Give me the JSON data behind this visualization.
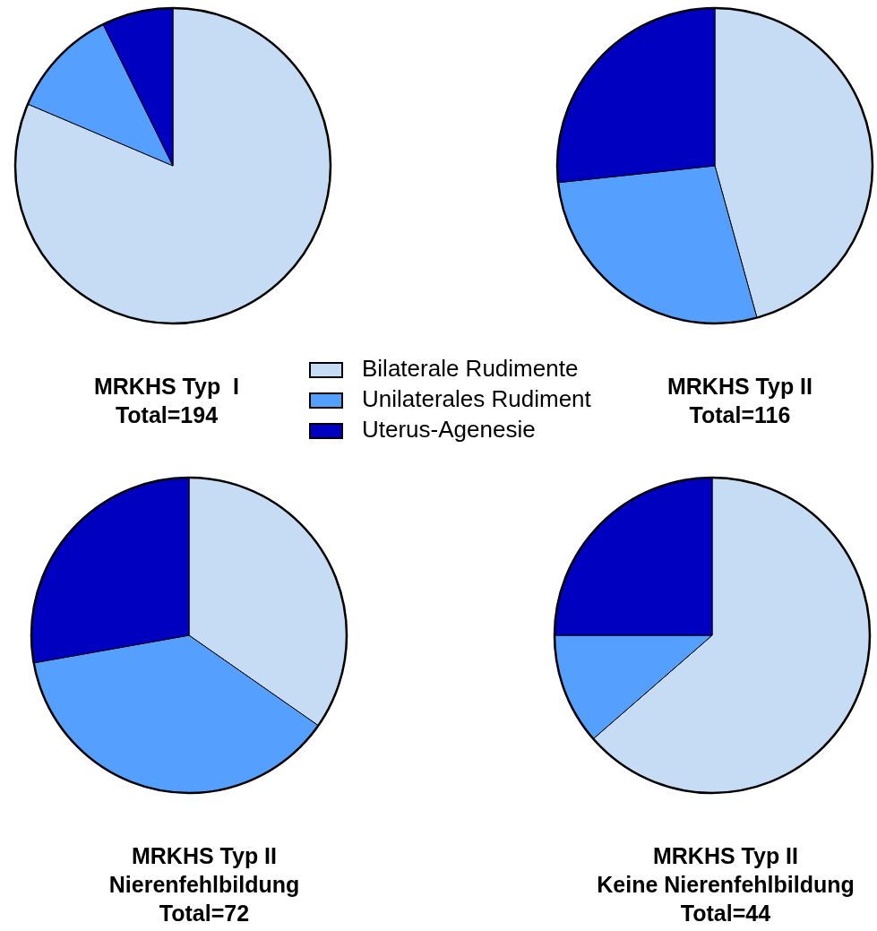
{
  "chart_data": [
    {
      "type": "pie",
      "title": "MRKHS Typ  I\nTotal=194",
      "categories": [
        "Bilaterale Rudimente",
        "Unilaterales Rudiment",
        "Uterus-Agenesie"
      ],
      "values": [
        81.4,
        11.3,
        7.3
      ],
      "colors": [
        "#c6dcf5",
        "#55a0ff",
        "#0000c0"
      ],
      "legend": "right"
    },
    {
      "type": "pie",
      "title": "MRKHS Typ II\nTotal=116",
      "categories": [
        null,
        null,
        null
      ],
      "values": [
        45.7,
        27.6,
        26.7
      ],
      "colors": [
        "#c6dcf5",
        "#55a0ff",
        "#0000c0"
      ]
    },
    {
      "type": "pie",
      "title": "MRKHS Typ II\nNierenfehlbildung\nTotal=72",
      "categories": [
        null,
        null,
        null
      ],
      "values": [
        34.7,
        37.5,
        27.8
      ],
      "colors": [
        "#c6dcf5",
        "#55a0ff",
        "#0000c0"
      ]
    },
    {
      "type": "pie",
      "title": "MRKHS Typ II\nKeine Nierenfehlbildung\nTotal=44",
      "categories": [
        null,
        null,
        null
      ],
      "values": [
        63.6,
        11.4,
        25.0
      ],
      "colors": [
        "#c6dcf5",
        "#55a0ff",
        "#0000c0"
      ]
    }
  ]
}
